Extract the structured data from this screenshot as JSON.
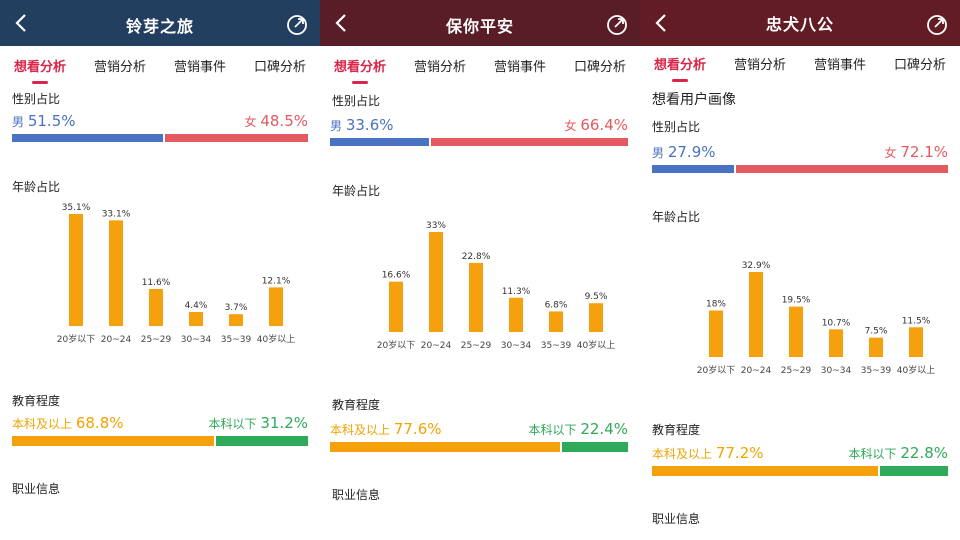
{
  "panels": [
    {
      "title": "铃芽之旅",
      "header_color": "#233f5f",
      "tabs": [
        "想看分析",
        "营销分析",
        "营销事件",
        "口碑分析"
      ],
      "active_tab": 0,
      "gender_title": "性别占比",
      "male_label": "男",
      "male_pct": "51.5%",
      "male_value": 51.5,
      "female_label": "女",
      "female_pct": "48.5%",
      "female_value": 48.5,
      "age_title": "年龄占比",
      "age": [
        {
          "label": "20岁以下",
          "value": 35.1,
          "text": "35.1%"
        },
        {
          "label": "20~24",
          "value": 33.1,
          "text": "33.1%"
        },
        {
          "label": "25~29",
          "value": 11.6,
          "text": "11.6%"
        },
        {
          "label": "30~34",
          "value": 4.4,
          "text": "4.4%"
        },
        {
          "label": "35~39",
          "value": 3.7,
          "text": "3.7%"
        },
        {
          "label": "40岁以上",
          "value": 12.1,
          "text": "12.1%"
        }
      ],
      "edu_title": "教育程度",
      "edu_high_label": "本科及以上",
      "edu_high_pct": "68.8%",
      "edu_high_value": 68.8,
      "edu_low_label": "本科以下",
      "edu_low_pct": "31.2%",
      "edu_low_value": 31.2,
      "job_title": "职业信息"
    },
    {
      "title": "保你平安",
      "header_color": "#581d26",
      "tabs": [
        "想看分析",
        "营销分析",
        "营销事件",
        "口碑分析"
      ],
      "active_tab": 0,
      "gender_title": "性别占比",
      "male_label": "男",
      "male_pct": "33.6%",
      "male_value": 33.6,
      "female_label": "女",
      "female_pct": "66.4%",
      "female_value": 66.4,
      "age_title": "年龄占比",
      "age": [
        {
          "label": "20岁以下",
          "value": 16.6,
          "text": "16.6%"
        },
        {
          "label": "20~24",
          "value": 33,
          "text": "33%"
        },
        {
          "label": "25~29",
          "value": 22.8,
          "text": "22.8%"
        },
        {
          "label": "30~34",
          "value": 11.3,
          "text": "11.3%"
        },
        {
          "label": "35~39",
          "value": 6.8,
          "text": "6.8%"
        },
        {
          "label": "40岁以上",
          "value": 9.5,
          "text": "9.5%"
        }
      ],
      "edu_title": "教育程度",
      "edu_high_label": "本科及以上",
      "edu_high_pct": "77.6%",
      "edu_high_value": 77.6,
      "edu_low_label": "本科以下",
      "edu_low_pct": "22.4%",
      "edu_low_value": 22.4,
      "job_title": "职业信息"
    },
    {
      "title": "忠犬八公",
      "header_color": "#611c24",
      "tabs": [
        "想看分析",
        "营销分析",
        "营销事件",
        "口碑分析"
      ],
      "active_tab": 0,
      "section_heading": "想看用户画像",
      "gender_title": "性别占比",
      "male_label": "男",
      "male_pct": "27.9%",
      "male_value": 27.9,
      "female_label": "女",
      "female_pct": "72.1%",
      "female_value": 72.1,
      "age_title": "年龄占比",
      "age": [
        {
          "label": "20岁以下",
          "value": 18,
          "text": "18%"
        },
        {
          "label": "20~24",
          "value": 32.9,
          "text": "32.9%"
        },
        {
          "label": "25~29",
          "value": 19.5,
          "text": "19.5%"
        },
        {
          "label": "30~34",
          "value": 10.7,
          "text": "10.7%"
        },
        {
          "label": "35~39",
          "value": 7.5,
          "text": "7.5%"
        },
        {
          "label": "40岁以上",
          "value": 11.5,
          "text": "11.5%"
        }
      ],
      "edu_title": "教育程度",
      "edu_high_label": "本科及以上",
      "edu_high_pct": "77.2%",
      "edu_high_value": 77.2,
      "edu_low_label": "本科以下",
      "edu_low_pct": "22.8%",
      "edu_low_value": 22.8,
      "job_title": "职业信息"
    }
  ],
  "colors": {
    "accent": "#d8264a",
    "male": "#4a72c2",
    "female": "#e45a61",
    "bar": "#f5a10e",
    "edu_high": "#f2a300",
    "edu_low": "#2faa5a"
  }
}
